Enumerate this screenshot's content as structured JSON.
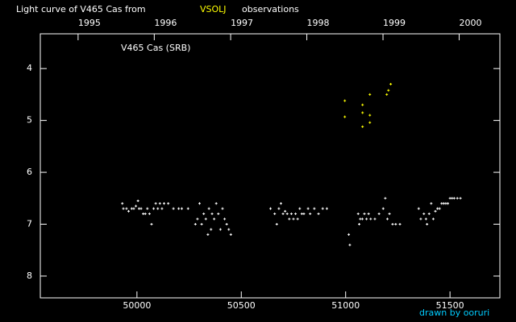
{
  "chart_data": {
    "type": "scatter",
    "title": "Light curve of V465 Cas from",
    "title_source": "VSOLJ",
    "title_source_color": "#ffff00",
    "title_tail": "observations",
    "annotation": "V465 Cas (SRB)",
    "credit": "drawn by ooruri",
    "credit_color": "#00ccff",
    "xlim": [
      49537,
      51739
    ],
    "xticks": [
      50000,
      50500,
      51000,
      51500
    ],
    "x2lim": [
      49537,
      51739
    ],
    "x2ticks": [
      {
        "value": 49718,
        "label": "1995"
      },
      {
        "value": 50083,
        "label": "1996"
      },
      {
        "value": 50449,
        "label": "1997"
      },
      {
        "value": 50814,
        "label": "1998"
      },
      {
        "value": 51179,
        "label": "1999"
      },
      {
        "value": 51544,
        "label": "2000"
      }
    ],
    "ylim": [
      8.42,
      3.33
    ],
    "yticks": [
      4,
      5,
      6,
      7,
      8
    ],
    "series": [
      {
        "color": "#ffffff",
        "x": [
          49930,
          49935,
          49950,
          49960,
          49975,
          49985,
          49995,
          50005,
          50010,
          50020,
          50030,
          50040,
          50050,
          50060,
          50070,
          50080,
          50090,
          50100,
          50110,
          50120,
          50130,
          50150,
          50175,
          50200,
          50215,
          50245,
          50280,
          50290,
          50300,
          50310,
          50320,
          50330,
          50340,
          50345,
          50355,
          50360,
          50370,
          50380,
          50390,
          50400,
          50410,
          50420,
          50430,
          50440,
          50450,
          50640,
          50660,
          50670,
          50680,
          50690,
          50700,
          50710,
          50720,
          50730,
          50740,
          50750,
          50760,
          50770,
          50780,
          50790,
          50800,
          50820,
          50830,
          50850,
          50870,
          50890,
          50910,
          51015,
          51020,
          51060,
          51065,
          51070,
          51080,
          51090,
          51100,
          51110,
          51120,
          51140,
          51160,
          51180,
          51190,
          51200,
          51210,
          51225,
          51240,
          51260,
          51350,
          51360,
          51375,
          51385,
          51390,
          51400,
          51410,
          51420,
          51430,
          51440,
          51450,
          51460,
          51470,
          51480,
          51490,
          51500,
          51510,
          51520,
          51535,
          51550
        ],
        "y": [
          6.6,
          6.7,
          6.7,
          6.75,
          6.7,
          6.7,
          6.65,
          6.55,
          6.7,
          6.7,
          6.8,
          6.8,
          6.7,
          6.8,
          7.0,
          6.7,
          6.6,
          6.7,
          6.6,
          6.7,
          6.6,
          6.6,
          6.7,
          6.7,
          6.7,
          6.7,
          7.0,
          6.9,
          6.6,
          7.0,
          6.8,
          6.9,
          7.2,
          6.7,
          7.1,
          6.8,
          6.9,
          6.6,
          6.8,
          7.1,
          6.7,
          6.9,
          7.0,
          7.1,
          7.2,
          6.7,
          6.8,
          7.0,
          6.7,
          6.6,
          6.8,
          6.75,
          6.8,
          6.9,
          6.8,
          6.9,
          6.8,
          6.9,
          6.7,
          6.8,
          6.8,
          6.7,
          6.8,
          6.7,
          6.8,
          6.7,
          6.7,
          7.2,
          7.4,
          6.8,
          7.0,
          6.9,
          6.9,
          6.8,
          6.9,
          6.8,
          6.9,
          6.9,
          6.8,
          6.7,
          6.5,
          6.9,
          6.8,
          7.0,
          7.0,
          7.0,
          6.7,
          6.9,
          6.8,
          6.9,
          7.0,
          6.8,
          6.6,
          6.9,
          6.75,
          6.7,
          6.7,
          6.6,
          6.6,
          6.6,
          6.6,
          6.5,
          6.5,
          6.5,
          6.5,
          6.5
        ]
      },
      {
        "color": "#ffff00",
        "x": [
          50996,
          50996,
          51081,
          51081,
          51081,
          51116,
          51116,
          51116,
          51197,
          51205,
          51216
        ],
        "y": [
          4.62,
          4.93,
          4.7,
          4.85,
          5.12,
          4.5,
          4.9,
          5.04,
          4.5,
          4.42,
          4.3
        ]
      }
    ]
  }
}
